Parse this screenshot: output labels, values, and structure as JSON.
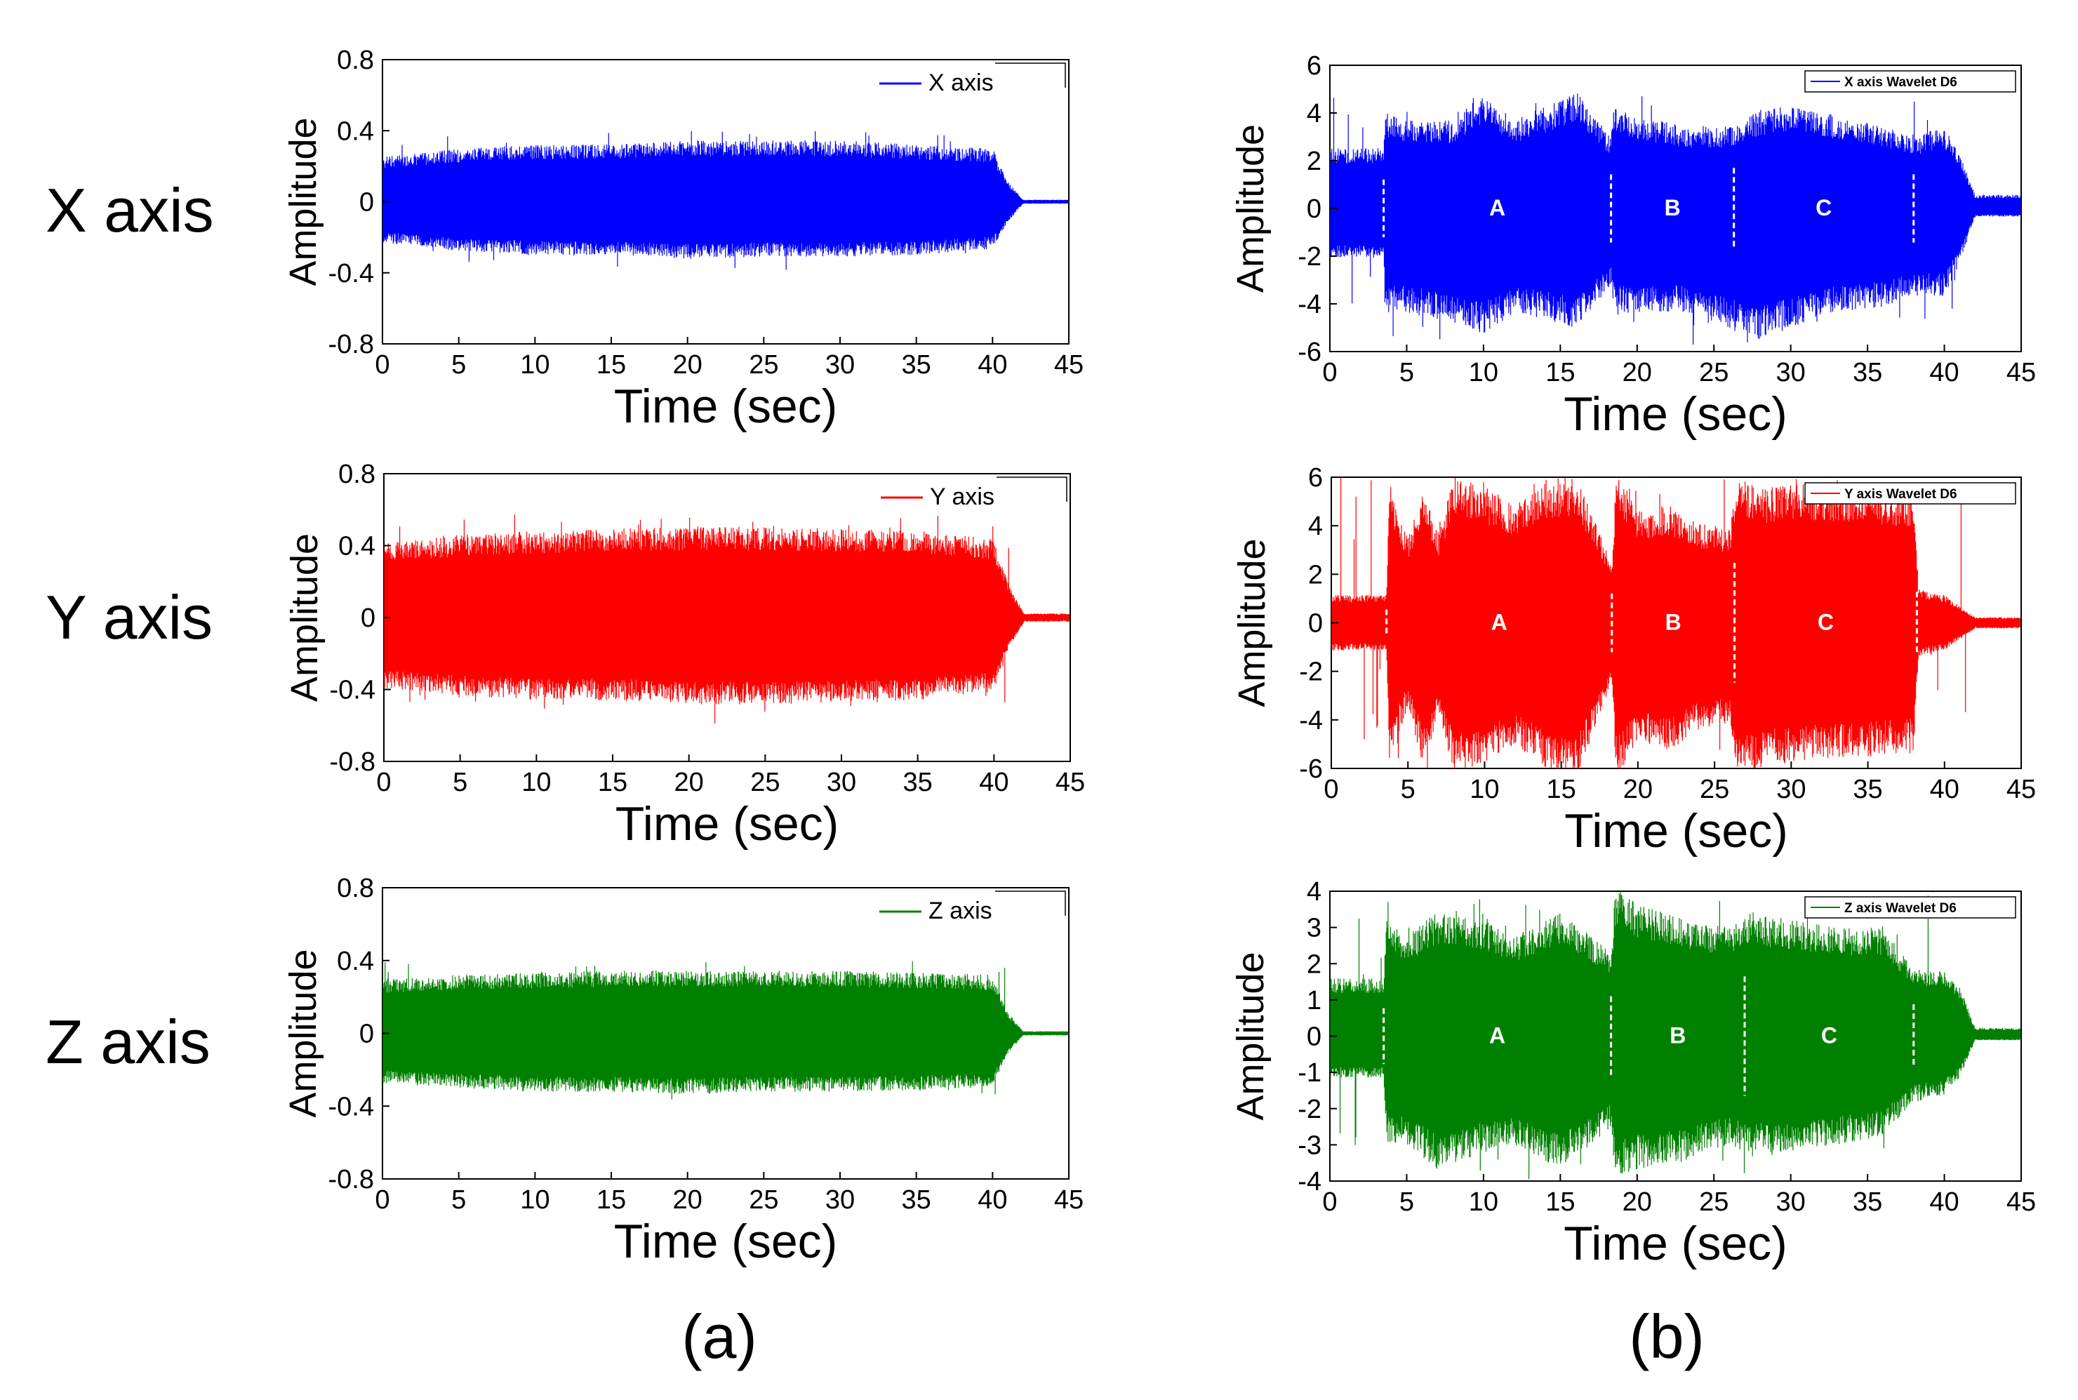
{
  "row_labels": [
    "X axis",
    "Y axis",
    "Z axis"
  ],
  "panel_labels": [
    "(a)",
    "(b)"
  ],
  "chart_data": [
    {
      "type": "line",
      "panel": "a",
      "row": 0,
      "color": "#0000ff",
      "legend": "X axis",
      "xlabel": "Time (sec)",
      "ylabel": "Amplitude",
      "xlim": [
        0,
        45
      ],
      "ylim": [
        -0.8,
        0.8
      ],
      "xticks": [
        "0",
        "5",
        "10",
        "15",
        "20",
        "25",
        "30",
        "35",
        "40",
        "45"
      ],
      "yticks": [
        "0.8",
        "0.4",
        "0",
        "-0.4",
        "-0.8"
      ],
      "envelope": {
        "x": [
          0,
          5,
          10,
          15,
          20,
          25,
          30,
          35,
          40,
          41,
          42,
          45
        ],
        "upper": [
          0.22,
          0.26,
          0.28,
          0.28,
          0.3,
          0.3,
          0.3,
          0.28,
          0.26,
          0.1,
          0.01,
          0.01
        ],
        "lower": [
          -0.2,
          -0.24,
          -0.26,
          -0.26,
          -0.28,
          -0.27,
          -0.27,
          -0.26,
          -0.23,
          -0.1,
          -0.01,
          -0.01
        ]
      },
      "peak": 0.4,
      "end": 41.5,
      "segments": []
    },
    {
      "type": "line",
      "panel": "a",
      "row": 1,
      "color": "#ff0000",
      "legend": "Y axis",
      "xlabel": "Time (sec)",
      "ylabel": "Amplitude",
      "xlim": [
        0,
        45
      ],
      "ylim": [
        -0.8,
        0.8
      ],
      "xticks": [
        "0",
        "5",
        "10",
        "15",
        "20",
        "25",
        "30",
        "35",
        "40",
        "45"
      ],
      "yticks": [
        "0.8",
        "0.4",
        "0",
        "-0.4",
        "-0.8"
      ],
      "envelope": {
        "x": [
          0,
          5,
          10,
          15,
          20,
          25,
          30,
          35,
          40,
          41,
          42,
          45
        ],
        "upper": [
          0.36,
          0.4,
          0.42,
          0.43,
          0.44,
          0.44,
          0.43,
          0.42,
          0.38,
          0.15,
          0.02,
          0.02
        ],
        "lower": [
          -0.34,
          -0.38,
          -0.4,
          -0.4,
          -0.42,
          -0.42,
          -0.41,
          -0.4,
          -0.36,
          -0.15,
          -0.02,
          -0.02
        ]
      },
      "peak": 0.58,
      "end": 41.5,
      "segments": []
    },
    {
      "type": "line",
      "panel": "a",
      "row": 2,
      "color": "#008000",
      "legend": "Z axis",
      "xlabel": "Time (sec)",
      "ylabel": "Amplitude",
      "xlim": [
        0,
        45
      ],
      "ylim": [
        -0.8,
        0.8
      ],
      "xticks": [
        "0",
        "5",
        "10",
        "15",
        "20",
        "25",
        "30",
        "35",
        "40",
        "45"
      ],
      "yticks": [
        "0.8",
        "0.4",
        "0",
        "-0.4",
        "-0.8"
      ],
      "envelope": {
        "x": [
          0,
          5,
          10,
          15,
          20,
          25,
          30,
          35,
          40,
          41,
          42,
          45
        ],
        "upper": [
          0.26,
          0.28,
          0.29,
          0.3,
          0.3,
          0.3,
          0.3,
          0.29,
          0.28,
          0.1,
          0.01,
          0.01
        ],
        "lower": [
          -0.24,
          -0.26,
          -0.28,
          -0.28,
          -0.29,
          -0.28,
          -0.28,
          -0.27,
          -0.26,
          -0.1,
          -0.01,
          -0.01
        ]
      },
      "peak": 0.4,
      "end": 41.5,
      "segments": []
    },
    {
      "type": "line",
      "panel": "b",
      "row": 0,
      "color": "#0000ff",
      "legend": "X axis Wavelet D6",
      "xlabel": "Time (sec)",
      "ylabel": "Amplitude",
      "xlim": [
        0,
        45
      ],
      "ylim": [
        -6,
        6
      ],
      "xticks": [
        "0",
        "5",
        "10",
        "15",
        "20",
        "25",
        "30",
        "35",
        "40",
        "45"
      ],
      "yticks": [
        "6",
        "4",
        "2",
        "0",
        "-2",
        "-4",
        "-6"
      ],
      "envelope": {
        "x": [
          0,
          3.5,
          3.6,
          5,
          8,
          10,
          12,
          15,
          16,
          18.3,
          18.5,
          20,
          23,
          26,
          28,
          30,
          33,
          36,
          38,
          40,
          41,
          42,
          45
        ],
        "upper": [
          2.2,
          2.2,
          3.5,
          3.2,
          3.2,
          4.2,
          3.2,
          4.0,
          4.3,
          2.6,
          3.8,
          3.4,
          3.0,
          3.0,
          3.6,
          3.8,
          3.4,
          3.0,
          2.6,
          3.0,
          2.0,
          0.5,
          0.5
        ],
        "lower": [
          -1.8,
          -1.8,
          -3.8,
          -3.8,
          -4.2,
          -4.6,
          -3.8,
          -4.2,
          -4.4,
          -2.8,
          -3.8,
          -3.8,
          -3.8,
          -4.4,
          -4.8,
          -4.4,
          -3.8,
          -3.6,
          -3.2,
          -3.2,
          -2.0,
          -0.3,
          -0.3
        ]
      },
      "peak": 4.8,
      "end": 41.5,
      "segments": [
        {
          "label": "A",
          "x_start": 3.5,
          "x_end": 18.3
        },
        {
          "label": "B",
          "x_start": 18.3,
          "x_end": 26.3
        },
        {
          "label": "C",
          "x_start": 26.3,
          "x_end": 38.0
        }
      ],
      "dividers": [
        3.5,
        18.3,
        26.3,
        38.0
      ]
    },
    {
      "type": "line",
      "panel": "b",
      "row": 1,
      "color": "#ff0000",
      "legend": "Y axis Wavelet D6",
      "xlabel": "Time (sec)",
      "ylabel": "Amplitude",
      "xlim": [
        0,
        45
      ],
      "ylim": [
        -6,
        6
      ],
      "xticks": [
        "0",
        "5",
        "10",
        "15",
        "20",
        "25",
        "30",
        "35",
        "40",
        "45"
      ],
      "yticks": [
        "6",
        "4",
        "2",
        "0",
        "-2",
        "-4",
        "-6"
      ],
      "envelope": {
        "x": [
          0,
          3.6,
          3.8,
          5,
          6,
          7,
          8,
          10,
          12,
          14,
          16,
          18.3,
          18.6,
          20,
          22,
          24,
          26,
          26.5,
          28,
          30,
          35,
          38,
          38.3,
          40,
          41,
          42,
          45
        ],
        "upper": [
          1.0,
          1.0,
          5.0,
          3.0,
          4.8,
          3.2,
          5.2,
          4.8,
          4.2,
          5.0,
          5.2,
          2.2,
          5.6,
          4.0,
          4.2,
          3.6,
          3.4,
          5.2,
          4.8,
          5.0,
          4.8,
          4.6,
          1.2,
          1.0,
          0.6,
          0.2,
          0.2
        ],
        "lower": [
          -1.0,
          -1.0,
          -5.0,
          -3.0,
          -5.2,
          -3.4,
          -5.4,
          -5.0,
          -4.4,
          -5.2,
          -5.6,
          -2.2,
          -5.6,
          -4.2,
          -4.6,
          -3.8,
          -3.6,
          -5.4,
          -5.2,
          -5.0,
          -4.8,
          -4.6,
          -1.2,
          -1.0,
          -0.6,
          -0.2,
          -0.2
        ]
      },
      "peak": 6.0,
      "end": 42.0,
      "segments": [
        {
          "label": "A",
          "x_start": 3.6,
          "x_end": 18.3
        },
        {
          "label": "B",
          "x_start": 18.3,
          "x_end": 26.3
        },
        {
          "label": "C",
          "x_start": 26.3,
          "x_end": 38.2
        }
      ],
      "dividers": [
        3.6,
        18.3,
        26.3,
        38.2
      ]
    },
    {
      "type": "line",
      "panel": "b",
      "row": 2,
      "color": "#008000",
      "legend": "Z axis Wavelet D6",
      "xlabel": "Time (sec)",
      "ylabel": "Amplitude",
      "xlim": [
        0,
        45
      ],
      "ylim": [
        -4,
        4
      ],
      "xticks": [
        "0",
        "5",
        "10",
        "15",
        "20",
        "25",
        "30",
        "35",
        "40",
        "45"
      ],
      "yticks": [
        "4",
        "3",
        "2",
        "1",
        "0",
        "-1",
        "-2",
        "-3",
        "-4"
      ],
      "envelope": {
        "x": [
          0,
          3.5,
          3.7,
          5,
          7,
          10,
          12,
          15,
          18.3,
          18.6,
          20,
          23,
          26,
          27,
          30,
          33,
          36,
          38,
          40,
          41,
          42,
          45
        ],
        "upper": [
          1.4,
          1.4,
          2.8,
          2.4,
          3.0,
          2.8,
          2.4,
          3.0,
          2.0,
          3.6,
          3.2,
          2.8,
          2.6,
          3.0,
          2.8,
          2.6,
          2.6,
          1.6,
          1.6,
          1.2,
          0.2,
          0.2
        ],
        "lower": [
          -1.0,
          -1.0,
          -2.6,
          -2.6,
          -3.2,
          -2.8,
          -2.6,
          -3.2,
          -2.2,
          -3.4,
          -3.2,
          -3.0,
          -2.6,
          -2.8,
          -2.8,
          -2.6,
          -2.4,
          -1.6,
          -1.4,
          -1.0,
          -0.1,
          -0.1
        ]
      },
      "peak": 3.9,
      "end": 41.8,
      "segments": [
        {
          "label": "A",
          "x_start": 3.5,
          "x_end": 18.3
        },
        {
          "label": "B",
          "x_start": 18.3,
          "x_end": 27.0
        },
        {
          "label": "C",
          "x_start": 27.0,
          "x_end": 38.0
        }
      ],
      "dividers": [
        3.5,
        18.3,
        27.0,
        38.0
      ]
    }
  ]
}
